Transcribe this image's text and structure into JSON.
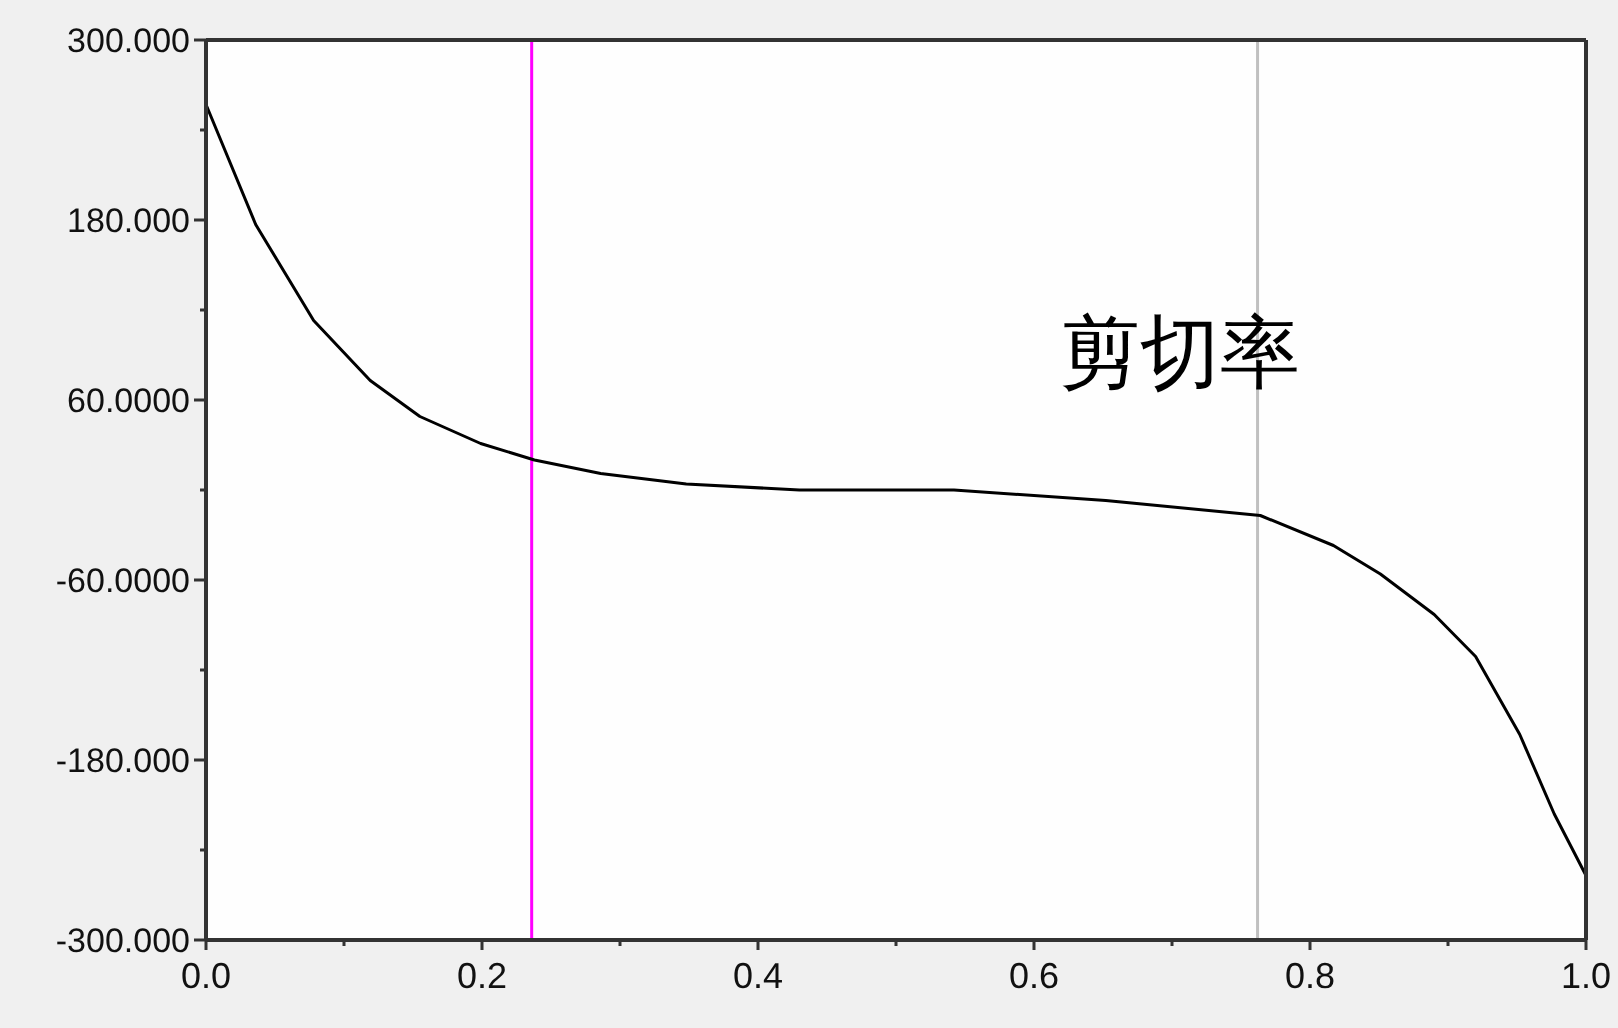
{
  "chart_data": {
    "type": "line",
    "annotations": [
      "剪切率"
    ],
    "x": [
      0,
      0.036,
      0.078,
      0.119,
      0.155,
      0.199,
      0.238,
      0.286,
      0.348,
      0.43,
      0.542,
      0.652,
      0.764,
      0.817,
      0.851,
      0.89,
      0.92,
      0.952,
      0.977,
      1.0
    ],
    "series": [
      {
        "color": "#000000",
        "values": [
          257,
          177,
          113,
          73,
          49,
          31,
          20,
          11,
          4,
          0,
          0,
          -7,
          -17,
          -37,
          -56,
          -83,
          -111,
          -163,
          -216,
          -257
        ]
      }
    ],
    "xlim": [
      0,
      1
    ],
    "ylim": [
      -300,
      300
    ],
    "xticks": [
      {
        "value": 0,
        "label": "0.0"
      },
      {
        "value": 0.1,
        "label": null
      },
      {
        "value": 0.2,
        "label": "0.2"
      },
      {
        "value": 0.3,
        "label": null
      },
      {
        "value": 0.4,
        "label": "0.4"
      },
      {
        "value": 0.5,
        "label": null
      },
      {
        "value": 0.6,
        "label": "0.6"
      },
      {
        "value": 0.7,
        "label": null
      },
      {
        "value": 0.8,
        "label": "0.8"
      },
      {
        "value": 0.9,
        "label": null
      },
      {
        "value": 1,
        "label": "1.0"
      }
    ],
    "yticks": [
      {
        "value": -300,
        "label": "-300.000"
      },
      {
        "value": -240,
        "label": null
      },
      {
        "value": -180,
        "label": "-180.000"
      },
      {
        "value": -120,
        "label": null
      },
      {
        "value": -60,
        "label": "-60.0000"
      },
      {
        "value": 0,
        "label": null
      },
      {
        "value": 60,
        "label": "60.0000"
      },
      {
        "value": 120,
        "label": null
      },
      {
        "value": 180,
        "label": "180.000"
      },
      {
        "value": 240,
        "label": null
      },
      {
        "value": 300,
        "label": "300.000"
      }
    ],
    "ref_lines": [
      {
        "axis": "x",
        "value": 0.236,
        "color": "#ff00ff"
      },
      {
        "axis": "x",
        "value": 0.762,
        "color": "#c0c0c0"
      }
    ],
    "grid": false
  }
}
